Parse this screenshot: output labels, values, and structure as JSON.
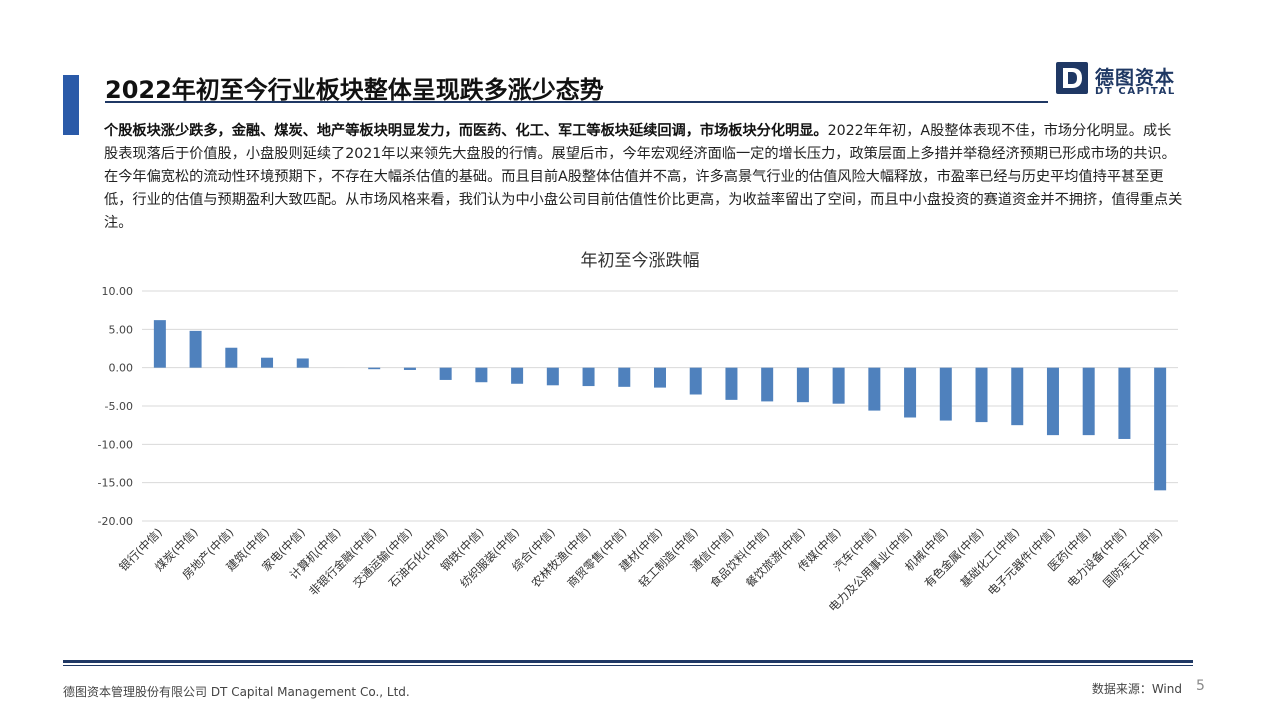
{
  "header": {
    "title": "2022年初至今行业板块整体呈现跌多涨少态势",
    "logo_cn": "德图资本",
    "logo_en": "DT CAPITAL",
    "brand_color": "#1f3864",
    "accent_color": "#2a5aa8"
  },
  "summary": {
    "bold": "个股板块涨少跌多，金融、煤炭、地产等板块明显发力，而医药、化工、军工等板块延续回调，市场板块分化明显。",
    "body": "2022年年初，A股整体表现不佳，市场分化明显。成长股表现落后于价值股，小盘股则延续了2021年以来领先大盘股的行情。展望后市，今年宏观经济面临一定的增长压力，政策层面上多措并举稳经济预期已形成市场的共识。在今年偏宽松的流动性环境预期下，不存在大幅杀估值的基础。而且目前A股整体估值并不高，许多高景气行业的估值风险大幅释放，市盈率已经与历史平均值持平甚至更低，行业的估值与预期盈利大致匹配。从市场风格来看，我们认为中小盘公司目前估值性价比更高，为收益率留出了空间，而且中小盘投资的赛道资金并不拥挤，值得重点关注。"
  },
  "chart_data": {
    "type": "bar",
    "title": "年初至今涨跌幅",
    "categories": [
      "银行(中信)",
      "煤炭(中信)",
      "房地产(中信)",
      "建筑(中信)",
      "家电(中信)",
      "计算机(中信)",
      "非银行金融(中信)",
      "交通运输(中信)",
      "石油石化(中信)",
      "钢铁(中信)",
      "纺织服装(中信)",
      "综合(中信)",
      "农林牧渔(中信)",
      "商贸零售(中信)",
      "建材(中信)",
      "轻工制造(中信)",
      "通信(中信)",
      "食品饮料(中信)",
      "餐饮旅游(中信)",
      "传媒(中信)",
      "汽车(中信)",
      "电力及公用事业(中信)",
      "机械(中信)",
      "有色金属(中信)",
      "基础化工(中信)",
      "电子元器件(中信)",
      "医药(中信)",
      "电力设备(中信)",
      "国防军工(中信)"
    ],
    "values": [
      6.2,
      4.8,
      2.6,
      1.3,
      1.2,
      0.0,
      -0.2,
      -0.3,
      -1.6,
      -1.9,
      -2.1,
      -2.3,
      -2.4,
      -2.5,
      -2.6,
      -3.5,
      -4.2,
      -4.4,
      -4.5,
      -4.7,
      -5.6,
      -6.5,
      -6.9,
      -7.1,
      -7.5,
      -8.8,
      -8.8,
      -9.3,
      -16.0
    ],
    "yticks": [
      "10.00",
      "5.00",
      "0.00",
      "-5.00",
      "-10.00",
      "-15.00",
      "-20.00"
    ],
    "ylim": [
      -20,
      10
    ],
    "bar_color": "#4f81bd",
    "grid": true,
    "legend": "none"
  },
  "footer": {
    "company": "德图资本管理股份有限公司  DT Capital Management  Co., Ltd.",
    "source": "数据来源：Wind",
    "page": "5"
  }
}
